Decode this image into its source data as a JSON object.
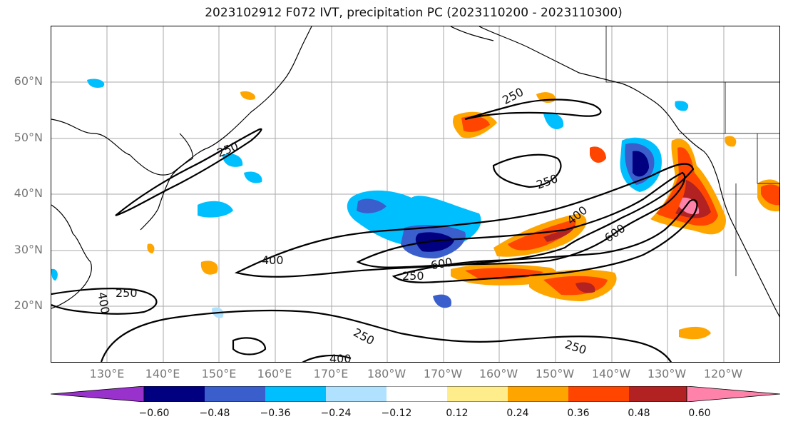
{
  "title": "2023102912 F072 IVT, precipitation PC (2023110200 - 2023110300)",
  "lat_labels": [
    "60°N",
    "50°N",
    "40°N",
    "30°N",
    "20°N"
  ],
  "lon_labels": [
    "130°E",
    "140°E",
    "150°E",
    "160°E",
    "170°E",
    "180°W",
    "170°W",
    "160°W",
    "150°W",
    "140°W",
    "130°W",
    "120°W"
  ],
  "contour_labels": [
    "250",
    "250",
    "400",
    "250",
    "600",
    "400",
    "600",
    "250",
    "400",
    "250",
    "250",
    "250",
    "400"
  ],
  "colorbar": {
    "ticks": [
      "−0.60",
      "−0.48",
      "−0.36",
      "−0.24",
      "−0.12",
      "0.12",
      "0.24",
      "0.36",
      "0.48",
      "0.60"
    ],
    "colors": [
      "#9932cc",
      "#000080",
      "#3a5fcd",
      "#00bfff",
      "#b0e2ff",
      "#ffffff",
      "#ffec8b",
      "#ffa500",
      "#ff4500",
      "#b22222",
      "#ff82ab"
    ]
  }
}
